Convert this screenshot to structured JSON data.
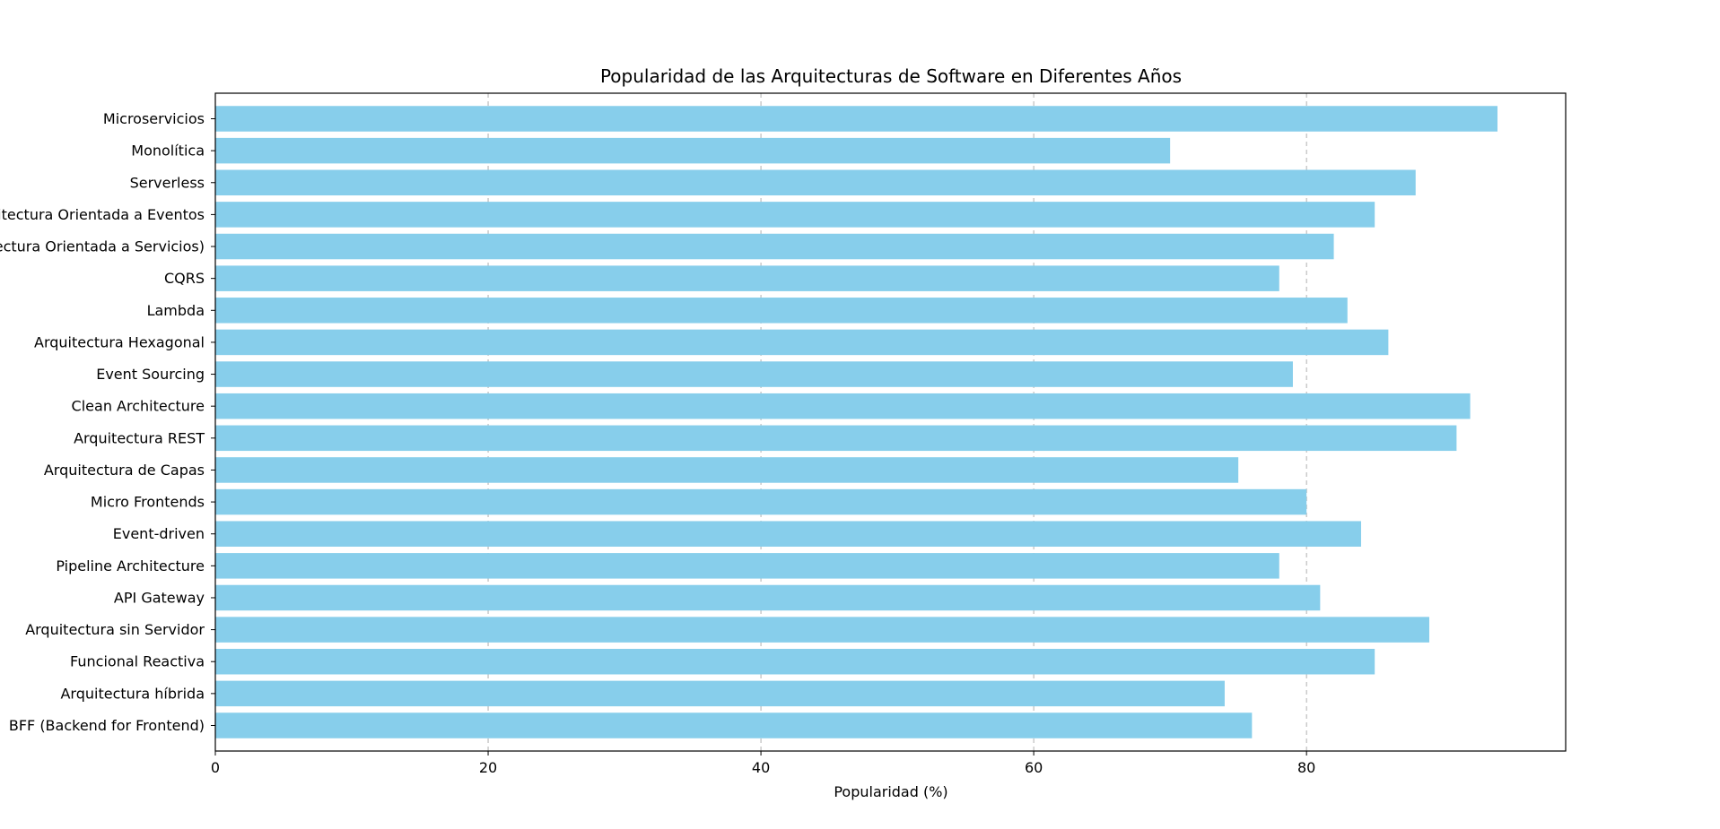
{
  "chart_data": {
    "type": "bar",
    "orientation": "horizontal",
    "title": "Popularidad de las Arquitecturas de Software en Diferentes Años",
    "xlabel": "Popularidad (%)",
    "ylabel": "",
    "xlim": [
      0,
      99
    ],
    "x_ticks": [
      0,
      20,
      40,
      60,
      80
    ],
    "grid": "x-axis dashed",
    "bar_color": "#87ceeb",
    "categories": [
      "Microservicios",
      "Monolítica",
      "Serverless",
      "Arquitectura Orientada a Eventos",
      "SOA (Arquitectura Orientada a Servicios)",
      "CQRS",
      "Lambda",
      "Arquitectura Hexagonal",
      "Event Sourcing",
      "Clean Architecture",
      "Arquitectura REST",
      "Arquitectura de Capas",
      "Micro Frontends",
      "Event-driven",
      "Pipeline Architecture",
      "API Gateway",
      "Arquitectura sin Servidor",
      "Funcional Reactiva",
      "Arquitectura híbrida",
      "BFF (Backend for Frontend)"
    ],
    "values": [
      94,
      70,
      88,
      85,
      82,
      78,
      83,
      86,
      79,
      92,
      91,
      75,
      80,
      84,
      78,
      81,
      89,
      85,
      74,
      76
    ]
  }
}
